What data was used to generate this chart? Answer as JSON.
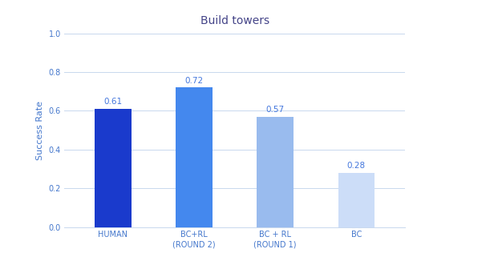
{
  "title": "Build towers",
  "ylabel": "Success Rate",
  "categories": [
    "HUMAN",
    "BC+RL\n(ROUND 2)",
    "BC + RL\n(ROUND 1)",
    "BC"
  ],
  "values": [
    0.61,
    0.72,
    0.57,
    0.28
  ],
  "bar_colors": [
    "#1a3acc",
    "#4488ee",
    "#99bbee",
    "#ccddf8"
  ],
  "value_color": "#4477dd",
  "ylim": [
    0.0,
    1.0
  ],
  "yticks": [
    0.0,
    0.2,
    0.4,
    0.6,
    0.8,
    1.0
  ],
  "title_color": "#444488",
  "axis_label_color": "#4477cc",
  "tick_color": "#4477cc",
  "background_color": "#ffffff",
  "grid_color": "#c8d8ee",
  "bar_width": 0.45,
  "title_fontsize": 10,
  "ylabel_fontsize": 8,
  "tick_fontsize": 7,
  "value_fontsize": 7.5
}
